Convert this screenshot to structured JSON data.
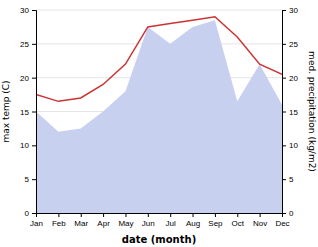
{
  "chart_data": {
    "type": "line",
    "x_label": "date (month)",
    "y_label": "max temp (C)",
    "y2_label": "med. precipitation (kg/m2)",
    "categories": [
      "Jan",
      "Feb",
      "Mar",
      "Apr",
      "May",
      "Jun",
      "Jul",
      "Aug",
      "Sep",
      "Oct",
      "Nov",
      "Dec"
    ],
    "series": [
      {
        "type": "area",
        "axis": "y2",
        "color": "#c8d0f0",
        "values": [
          15.0,
          12.0,
          12.5,
          15.0,
          18.0,
          27.5,
          25.0,
          27.5,
          28.5,
          16.5,
          22.0,
          16.0
        ]
      },
      {
        "type": "line",
        "color": "#cc3333",
        "values": [
          17.5,
          16.5,
          17.0,
          19.0,
          22.0,
          27.5,
          28.0,
          28.5,
          29.0,
          26.0,
          22.0,
          20.5
        ]
      }
    ],
    "ylim": [
      0,
      30
    ],
    "yticks": [
      0,
      5,
      10,
      15,
      20,
      25,
      30
    ],
    "y2lim": [
      0,
      30
    ],
    "y2ticks": [
      0,
      5,
      10,
      15,
      20,
      25,
      30
    ],
    "grid": true
  }
}
